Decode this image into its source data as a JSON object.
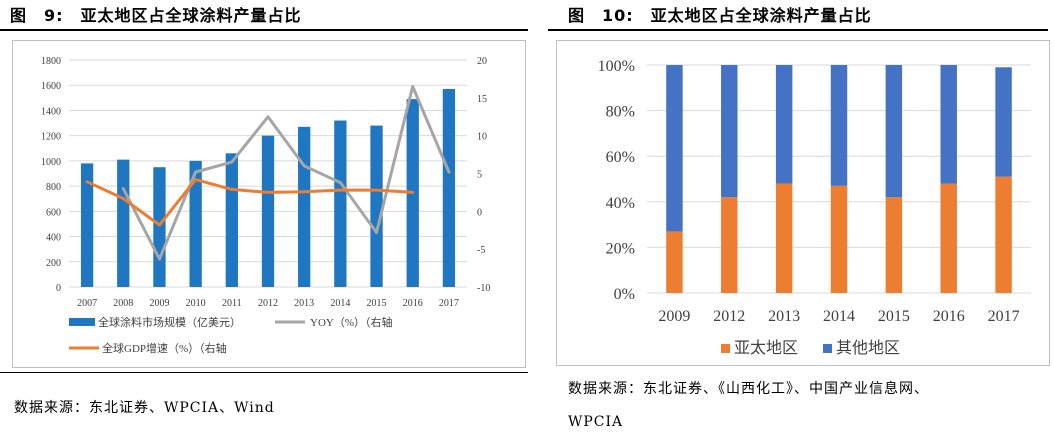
{
  "colors": {
    "bar_blue": "#1f77c2",
    "yoy_gray": "#a6a6a6",
    "gdp_orange": "#ed7d31",
    "apac_orange": "#ed7d31",
    "other_blue": "#4472c4"
  },
  "left": {
    "title": "图　9:　亚太地区占全球涂料产量占比",
    "source": "数据来源：东北证券、WPCIA、Wind"
  },
  "right": {
    "title": "图　10:　亚太地区占全球涂料产量占比",
    "source_line1": "数据来源：东北证券、《山西化工》、中国产业信息网、",
    "source_line2": "WPCIA"
  },
  "chart_data": [
    {
      "type": "bar",
      "title": "图 9: 亚太地区占全球涂料产量占比",
      "categories": [
        "2007",
        "2008",
        "2009",
        "2010",
        "2011",
        "2012",
        "2013",
        "2014",
        "2015",
        "2016",
        "2017"
      ],
      "ylim": [
        0,
        1800
      ],
      "yticks": [
        "0",
        "200",
        "400",
        "600",
        "800",
        "1000",
        "1200",
        "1400",
        "1600",
        "1800"
      ],
      "y2lim": [
        -10,
        20
      ],
      "y2ticks": [
        "-10",
        "-5",
        "0",
        "5",
        "10",
        "15",
        "20"
      ],
      "grid": true,
      "legend_position": "bottom",
      "series": [
        {
          "name": "全球涂料市场规模（亿美元）",
          "type": "bar",
          "axis": "left",
          "values": [
            980,
            1010,
            950,
            1000,
            1060,
            1200,
            1270,
            1320,
            1280,
            1490,
            1570
          ]
        },
        {
          "name": "YOY（%）（右轴",
          "type": "line",
          "axis": "right",
          "values": [
            null,
            3.0,
            -6.3,
            5.2,
            6.5,
            12.5,
            6.0,
            3.8,
            -2.8,
            16.5,
            5.2
          ]
        },
        {
          "name": "全球GDP增速（%）（右轴",
          "type": "line",
          "axis": "right",
          "values": [
            3.9,
            1.7,
            -1.8,
            4.2,
            2.9,
            2.5,
            2.6,
            2.8,
            2.8,
            2.5,
            null
          ]
        }
      ]
    },
    {
      "type": "bar",
      "stacked": true,
      "title": "图 10: 亚太地区占全球涂料产量占比",
      "categories": [
        "2009",
        "2012",
        "2013",
        "2014",
        "2015",
        "2016",
        "2017"
      ],
      "ylim": [
        0,
        100
      ],
      "yticks": [
        "0%",
        "20%",
        "40%",
        "60%",
        "80%",
        "100%"
      ],
      "grid": true,
      "legend_position": "bottom",
      "series": [
        {
          "name": "亚太地区",
          "values": [
            27,
            42,
            48,
            47,
            42,
            48,
            51
          ]
        },
        {
          "name": "其他地区",
          "values": [
            73,
            58,
            52,
            53,
            58,
            52,
            48
          ]
        }
      ]
    }
  ]
}
